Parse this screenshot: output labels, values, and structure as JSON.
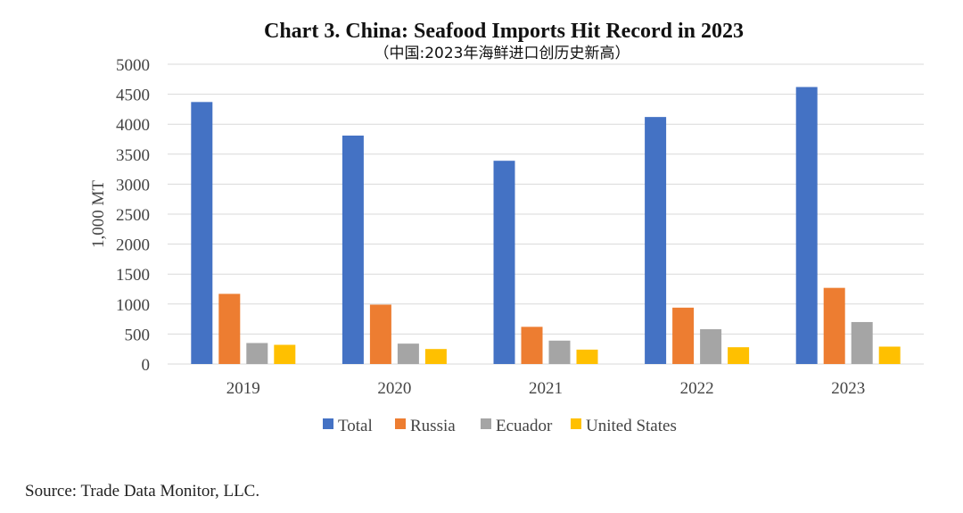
{
  "chart_data": {
    "type": "bar",
    "title": "Chart 3. China: Seafood Imports Hit Record in 2023",
    "subtitle": "（中国:2023年海鲜进口创历史新高）",
    "ylabel": "1,000 MT",
    "xlabel": "",
    "ylim": [
      0,
      5000
    ],
    "yticks": [
      0,
      500,
      1000,
      1500,
      2000,
      2500,
      3000,
      3500,
      4000,
      4500,
      5000
    ],
    "grid": true,
    "legend_position": "bottom",
    "categories": [
      "2019",
      "2020",
      "2021",
      "2022",
      "2023"
    ],
    "series": [
      {
        "name": "Total",
        "color": "#4472c4",
        "values": [
          4370,
          3810,
          3390,
          4120,
          4620
        ]
      },
      {
        "name": "Russia",
        "color": "#ed7d31",
        "values": [
          1170,
          990,
          620,
          940,
          1270
        ]
      },
      {
        "name": "Ecuador",
        "color": "#a5a5a5",
        "values": [
          350,
          340,
          390,
          580,
          700
        ]
      },
      {
        "name": "United States",
        "color": "#ffc000",
        "values": [
          320,
          250,
          240,
          280,
          290
        ]
      }
    ]
  },
  "source": "Source: Trade Data Monitor, LLC."
}
